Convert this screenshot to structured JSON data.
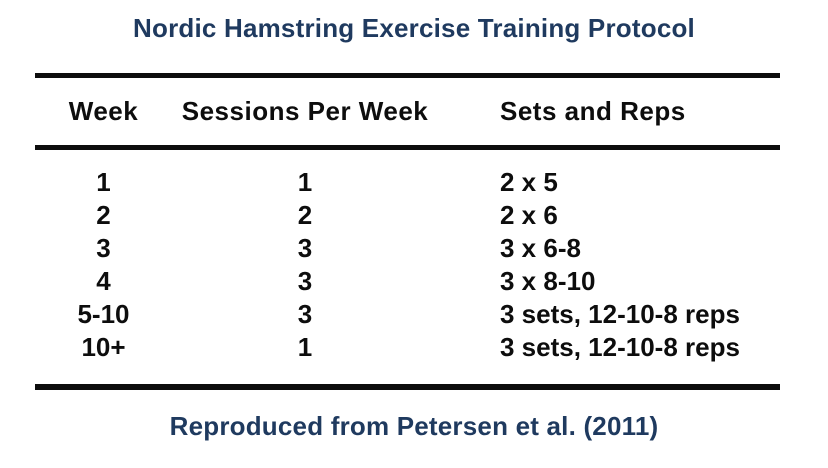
{
  "title": "Nordic Hamstring Exercise Training Protocol",
  "table": {
    "columns": [
      "Week",
      "Sessions Per Week",
      "Sets and Reps"
    ],
    "rows": [
      {
        "week": "1",
        "sessions": "1",
        "sets_reps": "2 x 5"
      },
      {
        "week": "2",
        "sessions": "2",
        "sets_reps": "2 x 6"
      },
      {
        "week": "3",
        "sessions": "3",
        "sets_reps": "3 x 6-8"
      },
      {
        "week": "4",
        "sessions": "3",
        "sets_reps": "3 x 8-10"
      },
      {
        "week": "5-10",
        "sessions": "3",
        "sets_reps": "3 sets, 12-10-8 reps"
      },
      {
        "week": "10+",
        "sessions": "1",
        "sets_reps": "3 sets, 12-10-8 reps"
      }
    ]
  },
  "caption": "Reproduced from Petersen et al. (2011)",
  "colors": {
    "accent_navy": "#1f3a5f",
    "rule_and_text_black": "#0d0d0d",
    "background": "#ffffff"
  }
}
